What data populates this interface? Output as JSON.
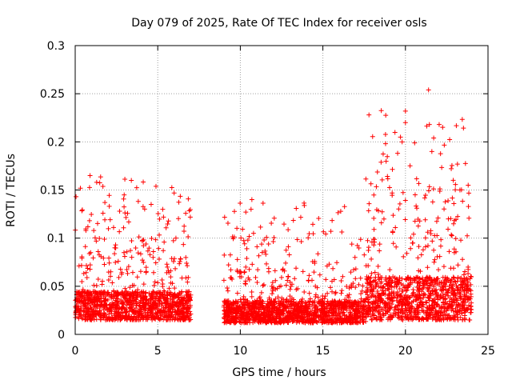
{
  "chart_data": {
    "type": "scatter",
    "title": "Day 079 of 2025, Rate Of TEC Index for receiver osls",
    "xlabel": "GPS time / hours",
    "ylabel": "ROTI / TECUs",
    "xlim": [
      0,
      25
    ],
    "ylim": [
      0,
      0.3
    ],
    "x_ticks": [
      0,
      5,
      10,
      15,
      20,
      25
    ],
    "x_tick_labels": [
      "0",
      "5",
      "10",
      "15",
      "20",
      "25"
    ],
    "y_ticks": [
      0,
      0.05,
      0.1,
      0.15,
      0.2,
      0.25,
      0.3
    ],
    "y_tick_labels": [
      "0",
      "0.05",
      "0.1",
      "0.15",
      "0.2",
      "0.25",
      "0.3"
    ],
    "grid": true,
    "marker": "+",
    "color": "#ff0000",
    "coverage_segments": [
      {
        "x_start": 0.0,
        "x_end": 7.0,
        "baseline": [
          0.015,
          0.045
        ],
        "extremes": [
          0.165,
          0.16,
          0.145,
          0.135,
          0.13
        ]
      },
      {
        "x_start": 9.0,
        "x_end": 17.6,
        "baseline": [
          0.012,
          0.035
        ],
        "extremes": [
          0.14,
          0.13,
          0.105,
          0.07,
          0.06
        ]
      },
      {
        "x_start": 17.6,
        "x_end": 24.0,
        "baseline": [
          0.015,
          0.06
        ],
        "extremes": [
          0.254,
          0.232,
          0.22,
          0.218,
          0.205,
          0.19,
          0.175,
          0.155
        ]
      }
    ],
    "notable_points": [
      {
        "x": 21.4,
        "y": 0.254
      },
      {
        "x": 20.0,
        "y": 0.232
      },
      {
        "x": 20.0,
        "y": 0.22
      },
      {
        "x": 21.45,
        "y": 0.218
      },
      {
        "x": 19.7,
        "y": 0.205
      },
      {
        "x": 19.8,
        "y": 0.2
      },
      {
        "x": 21.6,
        "y": 0.19
      },
      {
        "x": 0.9,
        "y": 0.165
      },
      {
        "x": 3.4,
        "y": 0.16
      },
      {
        "x": 1.3,
        "y": 0.158
      },
      {
        "x": 10.7,
        "y": 0.14
      },
      {
        "x": 10.65,
        "y": 0.13
      },
      {
        "x": 10.8,
        "y": 0.105
      },
      {
        "x": 0.05,
        "y": 0.143
      },
      {
        "x": 5.3,
        "y": 0.13
      },
      {
        "x": 4.6,
        "y": 0.135
      },
      {
        "x": 6.1,
        "y": 0.1
      },
      {
        "x": 23.8,
        "y": 0.155
      },
      {
        "x": 23.3,
        "y": 0.15
      },
      {
        "x": 22.6,
        "y": 0.12
      },
      {
        "x": 16.2,
        "y": 0.06
      }
    ]
  }
}
